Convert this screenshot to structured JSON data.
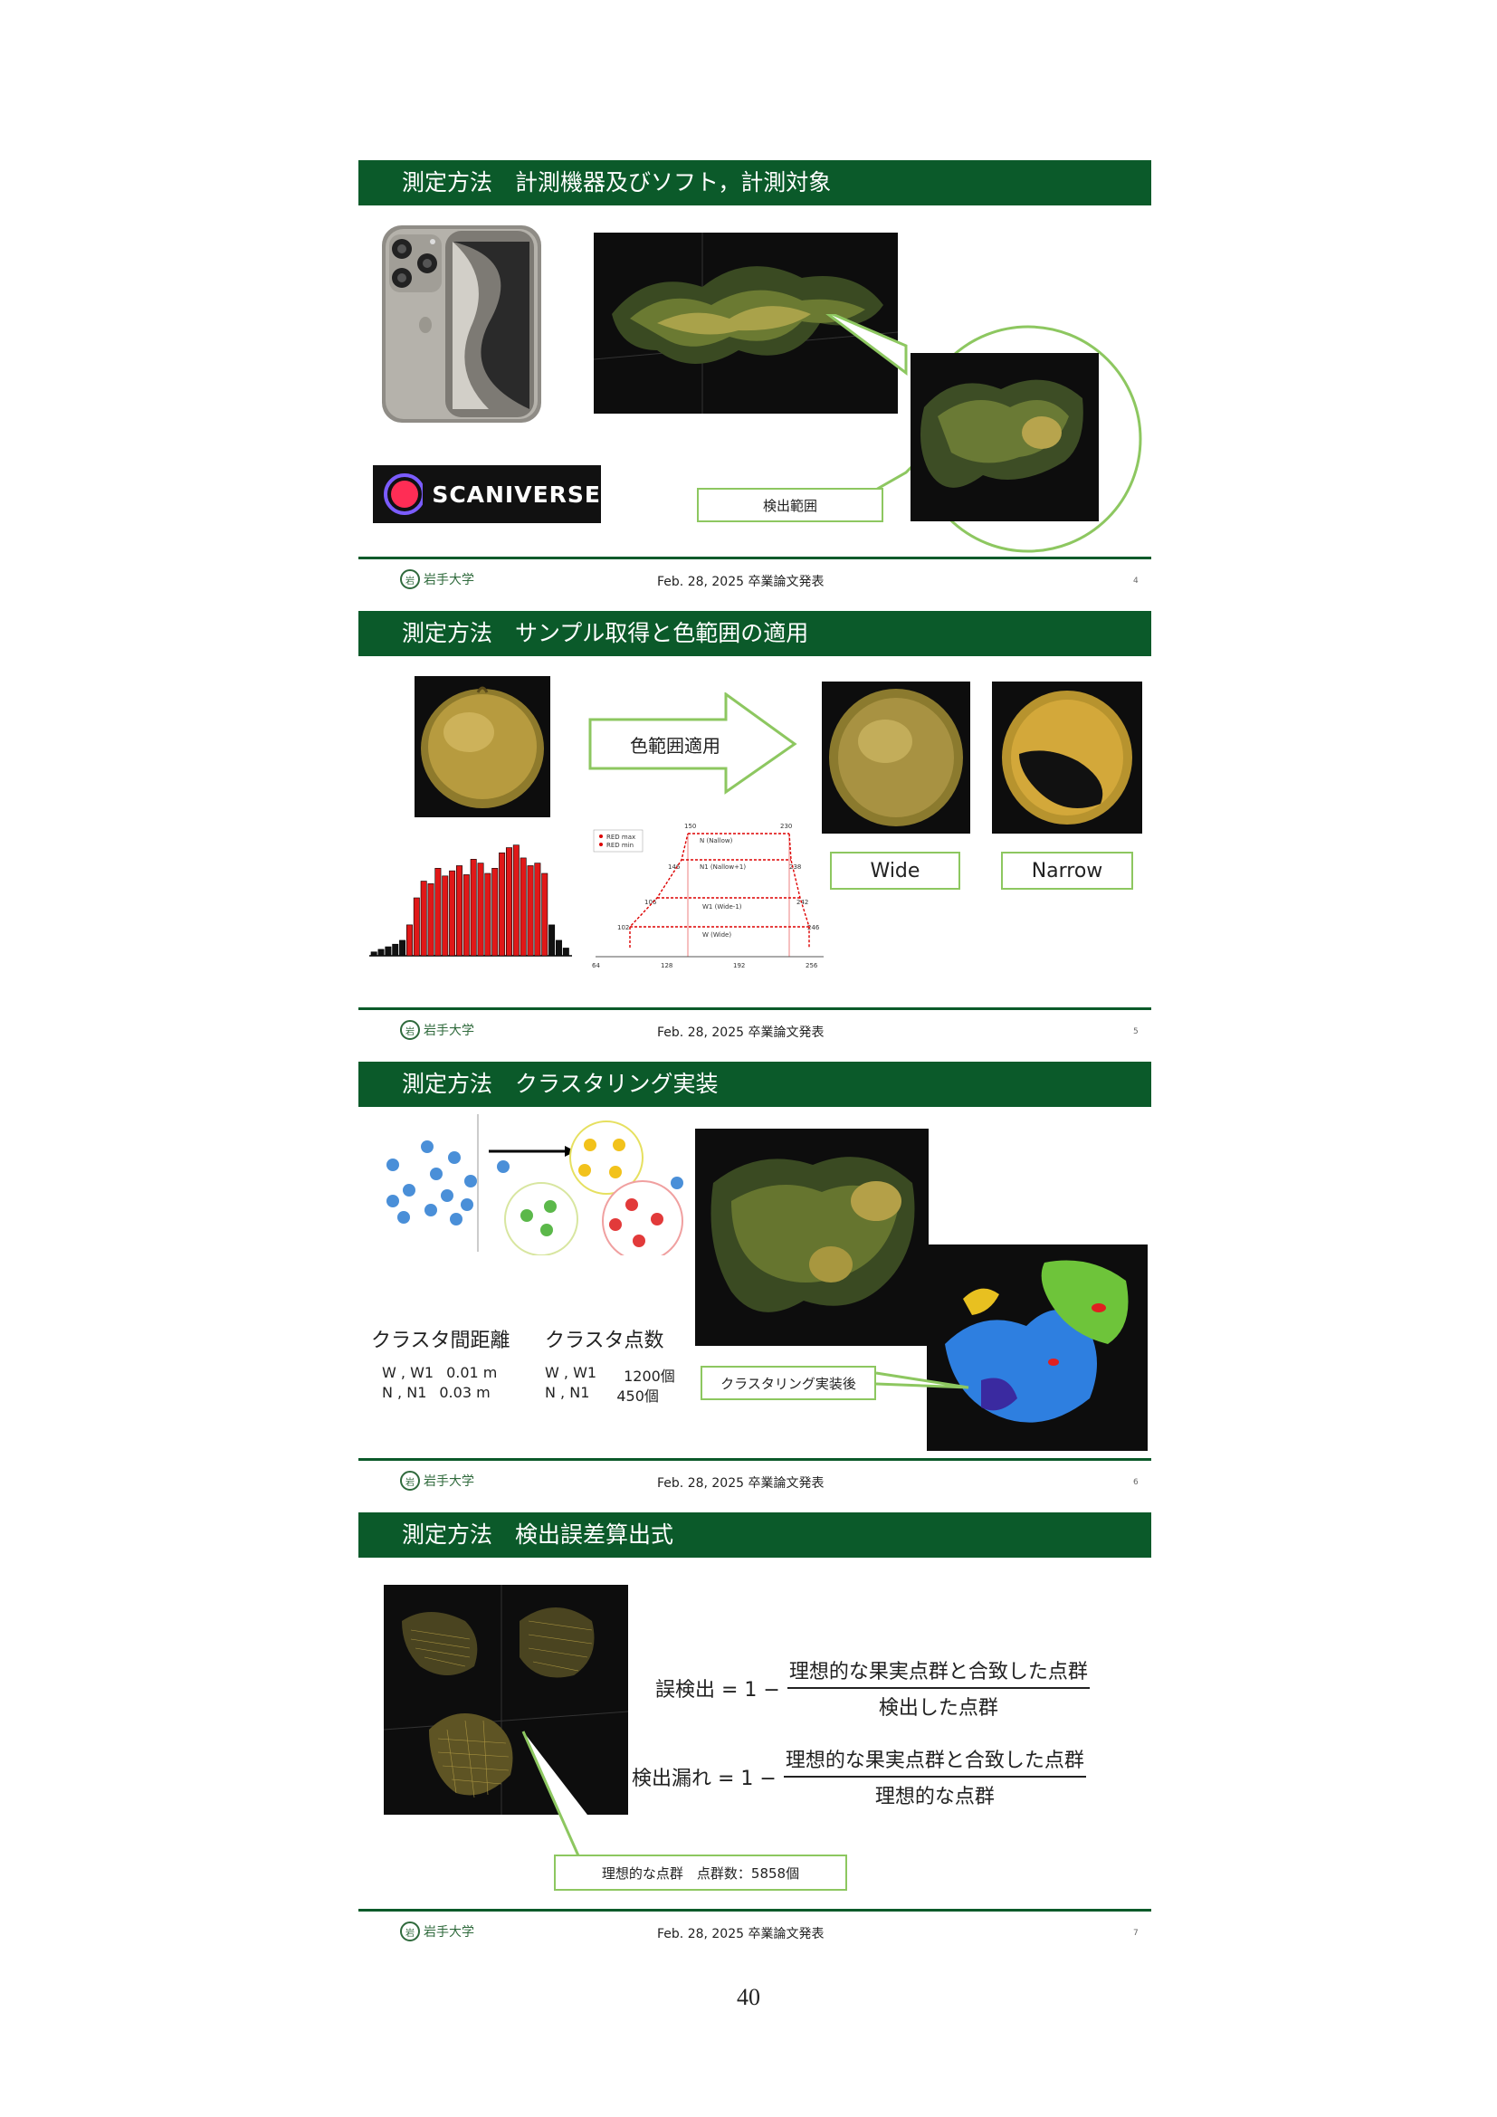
{
  "footer": {
    "text": "Feb. 28, 2025  卒業論文発表",
    "university": "岩手大学",
    "seal": "岩"
  },
  "page_number": "40",
  "slides": [
    {
      "title": "測定方法　計測機器及びソフト，計測対象",
      "page": "4",
      "app_name": "SCANIVERSE",
      "callout": "検出範囲"
    },
    {
      "title": "測定方法　サンプル取得と色範囲の適用",
      "page": "5",
      "arrow_label": "色範囲適用",
      "label_wide": "Wide",
      "label_narrow": "Narrow",
      "histogram": [
        3,
        5,
        7,
        9,
        12,
        24,
        45,
        58,
        56,
        68,
        62,
        66,
        70,
        63,
        75,
        72,
        64,
        68,
        80,
        84,
        86,
        76,
        70,
        72,
        64,
        24,
        12,
        6
      ],
      "range_chart": {
        "legend": [
          "RED max",
          "RED min"
        ],
        "top_labels": [
          "150",
          "230"
        ],
        "row_labels": [
          "N (Nallow)",
          "N1 (Nallow+1)",
          "W1 (Wide-1)",
          "W (Wide)"
        ],
        "left_values": [
          "146",
          "106",
          "102"
        ],
        "right_values": [
          "238",
          "242",
          "246"
        ],
        "x_ticks": [
          "64",
          "128",
          "192",
          "256"
        ]
      }
    },
    {
      "title": "測定方法　クラスタリング実装",
      "page": "6",
      "dist_title": "クラスタ間距離",
      "count_title": "クラスタ点数",
      "dist_rows": [
        {
          "k": "W , W1",
          "v": "0.01 m"
        },
        {
          "k": "N , N1",
          "v": "0.03 m"
        }
      ],
      "count_rows": [
        {
          "k": "W , W1",
          "v": "1200個"
        },
        {
          "k": "N , N1",
          "v": "450個"
        }
      ],
      "callout": "クラスタリング実装後",
      "colors": {
        "blue": "#4a8fd8",
        "yellow": "#f2c21b",
        "green": "#5bb84a",
        "red": "#e23a3a"
      }
    },
    {
      "title": "測定方法　検出誤差算出式",
      "page": "7",
      "f1_lhs": "誤検出 = 1 −",
      "f1_num": "理想的な果実点群と合致した点群",
      "f1_den": "検出した点群",
      "f2_lhs": "検出漏れ = 1 −",
      "f2_num": "理想的な果実点群と合致した点群",
      "f2_den": "理想的な点群",
      "callout": "理想的な点群　点群数：5858個"
    }
  ],
  "colors": {
    "header_green": "#0b5a2a",
    "accent_green": "#8dc760",
    "bar_red": "#e01818"
  }
}
